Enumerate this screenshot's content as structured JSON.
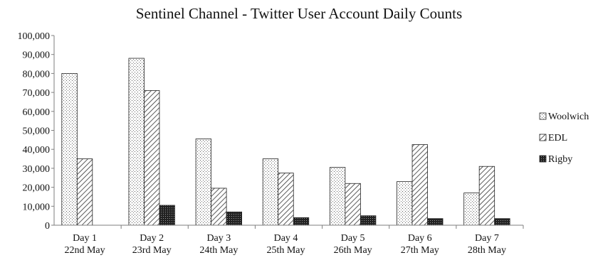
{
  "chart_data": {
    "type": "bar",
    "title": "Sentinel  Channel - Twitter User Account Daily  Counts",
    "xlabel": "",
    "ylabel": "",
    "categories": [
      [
        "Day 1",
        "22nd May"
      ],
      [
        "Day 2",
        "23rd May"
      ],
      [
        "Day 3",
        "24th May"
      ],
      [
        "Day 4",
        "25th May"
      ],
      [
        "Day 5",
        "26th May"
      ],
      [
        "Day 6",
        "27th May"
      ],
      [
        "Day 7",
        "28th May"
      ]
    ],
    "ylim": [
      0,
      100000
    ],
    "yticks": [
      0,
      10000,
      20000,
      30000,
      40000,
      50000,
      60000,
      70000,
      80000,
      90000,
      100000
    ],
    "ytick_labels": [
      "0",
      "10,000",
      "20,000",
      "30,000",
      "40,000",
      "50,000",
      "60,000",
      "70,000",
      "80,000",
      "90,000",
      "100,000"
    ],
    "series": [
      {
        "name": "Woolwich",
        "pattern": "dots",
        "values": [
          80000,
          88000,
          45500,
          35000,
          30500,
          23000,
          17000
        ]
      },
      {
        "name": "EDL",
        "pattern": "diagonal",
        "values": [
          35000,
          71000,
          19500,
          27500,
          22000,
          42500,
          31000
        ]
      },
      {
        "name": "Rigby",
        "pattern": "dense-dark",
        "values": [
          0,
          10500,
          7000,
          4000,
          5000,
          3500,
          3500
        ]
      }
    ],
    "legend_position": "right",
    "grid": false,
    "colors": {
      "axis": "#7f7f7f",
      "bar_stroke": "#222222",
      "text": "#111111"
    }
  }
}
